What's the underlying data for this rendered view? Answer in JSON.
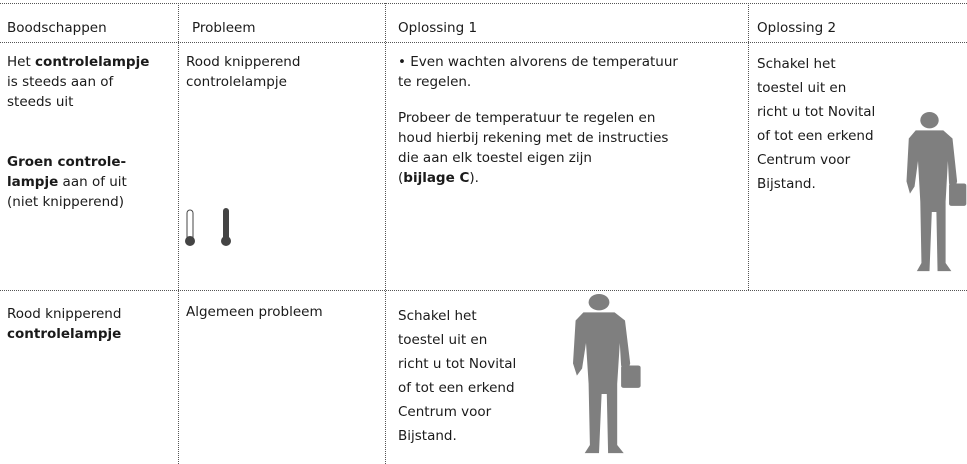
{
  "table": {
    "header": [
      "Boodschappen",
      "Probleem",
      "Oplossing 1",
      "Oplossing 2"
    ],
    "rows": [
      {
        "message": [
          "Het ",
          "controlelampje",
          "is steeds aan of",
          "steeds uit",
          "Groen controle-",
          "lampje",
          " aan of uit",
          "(niet knipperend)"
        ],
        "problem": [
          "Rood knipperend",
          "controlelampje"
        ],
        "solution_1": [
          "• Even wachten alvorens de temperatuur",
          "te regelen.",
          "Probeer de temperatuur te regelen en",
          "houd hierbij rekening met de instructies",
          "die aan elk toestel eigen zijn",
          "(",
          "bijlage C",
          ")."
        ],
        "solution_2": [
          "Schakel het",
          "toestel uit en",
          "richt u tot Novital",
          "of tot een erkend",
          "Centrum voor",
          "Bijstand."
        ]
      },
      {
        "message": [
          "Rood knipperend",
          "controlelampje"
        ],
        "problem": [
          "Algemeen probleem"
        ],
        "solution_1": [
          "Schakel het",
          "toestel uit en",
          "richt u tot Novital",
          "of tot een erkend",
          "Centrum voor",
          "Bijstand."
        ]
      }
    ]
  }
}
